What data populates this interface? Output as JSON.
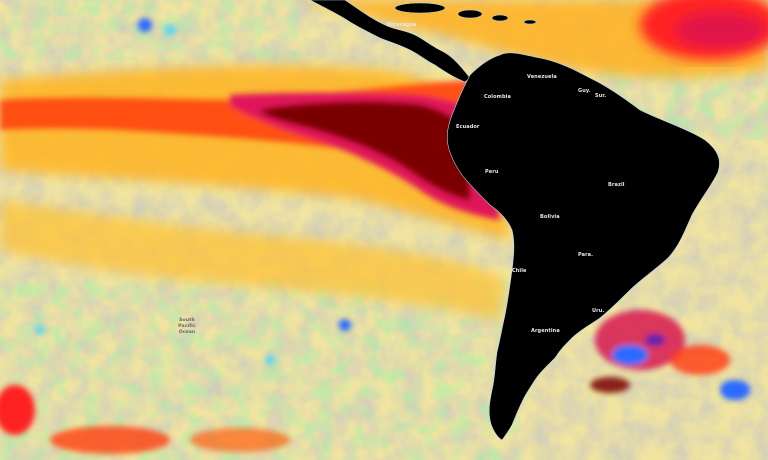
{
  "map": {
    "type": "sea-surface-temperature-anomaly",
    "colors": {
      "land": "#000000",
      "coastline": "#b8d8e8",
      "anomaly_extreme_warm": "#7a0000",
      "anomaly_very_warm": "#d81450",
      "anomaly_warm": "#ff3a10",
      "anomaly_mild_warm": "#ffa008",
      "anomaly_slight_warm": "#ffd84a",
      "neutral_light": "#f4ecb4",
      "neutral": "#c8c8c8",
      "anomaly_slight_cool": "#a8f0a8",
      "anomaly_cool": "#5ad8f0",
      "anomaly_cold": "#2a6aff",
      "anomaly_very_cold": "#6020a8"
    },
    "labels": {
      "colombia": "Colombia",
      "venezuela": "Venezuela",
      "guyana": "Guy.",
      "suriname": "Sur.",
      "ecuador": "Ecuador",
      "peru": "Peru",
      "brazil": "Brazil",
      "bolivia": "Bolivia",
      "paraguay": "Para.",
      "chile": "Chile",
      "argentina": "Argentina",
      "uruguay": "Uru.",
      "nicaragua": "Nicaragua",
      "ocean_line1": "South",
      "ocean_line2": "Pacific",
      "ocean_line3": "Ocean"
    }
  }
}
